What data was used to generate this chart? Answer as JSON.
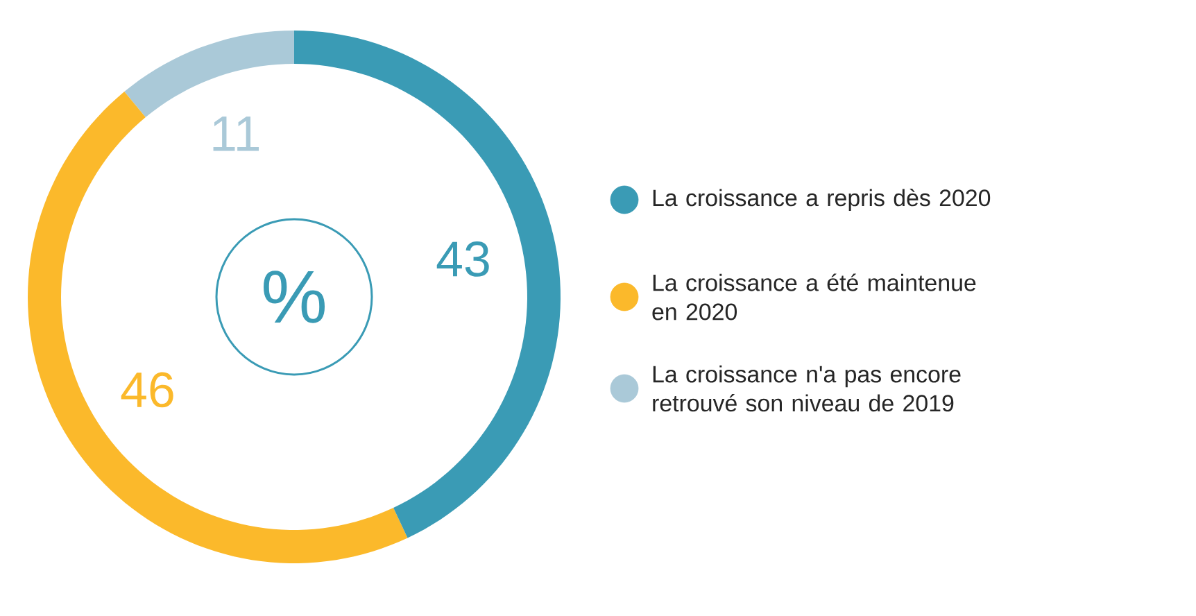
{
  "chart_data": {
    "type": "donut",
    "categories": [
      "La croissance a repris dès 2020",
      "La croissance a été maintenue en 2020",
      "La croissance n'a pas encore retrouvé son niveau de 2019"
    ],
    "values": [
      43,
      46,
      11
    ],
    "colors": [
      "#3a9bb5",
      "#fbb92b",
      "#aac9d8"
    ],
    "data_labels": true,
    "legend": "right",
    "annotations": [
      "%"
    ]
  }
}
